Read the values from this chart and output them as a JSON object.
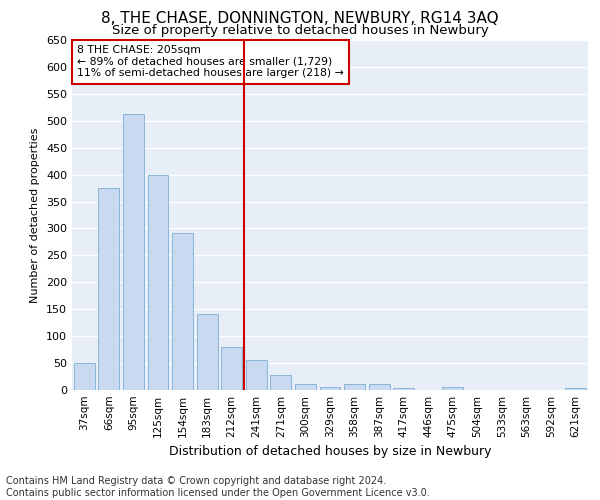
{
  "title": "8, THE CHASE, DONNINGTON, NEWBURY, RG14 3AQ",
  "subtitle": "Size of property relative to detached houses in Newbury",
  "xlabel": "Distribution of detached houses by size in Newbury",
  "ylabel": "Number of detached properties",
  "categories": [
    "37sqm",
    "66sqm",
    "95sqm",
    "125sqm",
    "154sqm",
    "183sqm",
    "212sqm",
    "241sqm",
    "271sqm",
    "300sqm",
    "329sqm",
    "358sqm",
    "387sqm",
    "417sqm",
    "446sqm",
    "475sqm",
    "504sqm",
    "533sqm",
    "563sqm",
    "592sqm",
    "621sqm"
  ],
  "values": [
    50,
    375,
    512,
    400,
    292,
    142,
    80,
    55,
    28,
    12,
    5,
    12,
    12,
    3,
    0,
    5,
    0,
    0,
    0,
    0,
    3
  ],
  "bar_color": "#c9daf0",
  "bar_edge_color": "#7bafd4",
  "vline_x": 6.5,
  "vline_color": "#cc0000",
  "annotation_text": "8 THE CHASE: 205sqm\n← 89% of detached houses are smaller (1,729)\n11% of semi-detached houses are larger (218) →",
  "annotation_box_color": "#ffffff",
  "annotation_box_edge": "#cc0000",
  "ylim": [
    0,
    650
  ],
  "yticks": [
    0,
    50,
    100,
    150,
    200,
    250,
    300,
    350,
    400,
    450,
    500,
    550,
    600,
    650
  ],
  "background_color": "#e8eef8",
  "grid_color": "#ffffff",
  "title_fontsize": 11,
  "subtitle_fontsize": 9.5,
  "footer_text": "Contains HM Land Registry data © Crown copyright and database right 2024.\nContains public sector information licensed under the Open Government Licence v3.0.",
  "footer_fontsize": 7
}
